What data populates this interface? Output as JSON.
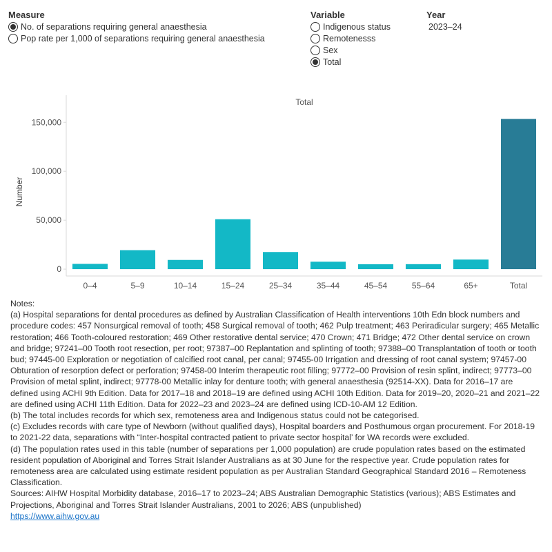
{
  "filters": {
    "measure": {
      "title": "Measure",
      "options": [
        {
          "label": "No. of separations requiring general anaesthesia",
          "selected": true
        },
        {
          "label": "Pop rate per 1,000 of separations requiring general anaesthesia",
          "selected": false
        }
      ]
    },
    "variable": {
      "title": "Variable",
      "options": [
        {
          "label": "Indigenous status",
          "selected": false
        },
        {
          "label": "Remotenesss",
          "selected": false
        },
        {
          "label": "Sex",
          "selected": false
        },
        {
          "label": "Total",
          "selected": true
        }
      ]
    },
    "year": {
      "title": "Year",
      "value": "2023–24"
    }
  },
  "chart_data": {
    "type": "bar",
    "panel_title": "Total",
    "ylabel": "Number",
    "xlabel": "",
    "categories": [
      "0–4",
      "5–9",
      "10–14",
      "15–24",
      "25–34",
      "35–44",
      "45–54",
      "55–64",
      "65+",
      "Total"
    ],
    "values": [
      5400,
      19400,
      9400,
      51000,
      17500,
      7600,
      5000,
      5100,
      9800,
      153500
    ],
    "ylim": [
      -7000,
      165000
    ],
    "yticks": [
      0,
      50000,
      100000,
      150000
    ],
    "ytick_labels": [
      "0",
      "50,000",
      "100,000",
      "150,000"
    ],
    "grid": false,
    "colors": {
      "bar": "#13b8c6",
      "total_bar": "#287c96",
      "axis": "#d9d9d9",
      "text": "#555555"
    }
  },
  "notes": {
    "heading": "Notes:",
    "lines": [
      "(a) Hospital separations for dental procedures as defined by  Australian Classification of Health interventions 10th Edn block numbers and procedure codes: 457 Nonsurgical removal of tooth; 458 Surgical removal of tooth; 462 Pulp treatment; 463 Periradicular surgery; 465 Metallic restoration; 466 Tooth-coloured restoration; 469 Other restorative dental service; 470 Crown; 471 Bridge; 472 Other dental service on crown and bridge; 97241–00 Tooth root resection, per root; 97387–00 Replantation and splinting of tooth; 97388–00 Transplantation of tooth or tooth bud; 97445-00 Exploration or negotiation of calcified root canal, per canal; 97455-00 Irrigation and dressing of root canal system; 97457-00 Obturation of resorption defect or perforation; 97458-00 Interim therapeutic root filling; 97772–00 Provision of resin splint, indirect; 97773–00 Provision of metal splint, indirect; 97778-00 Metallic inlay for denture tooth; with general anaesthesia (92514-XX). Data for 2016–17 are defined using ACHI 9th Edition. Data for 2017–18 and 2018–19 are defined using ACHI 10th Edition. Data for 2019–20, 2020–21 and 2021–22 are defined using ACHI 11th Edition. Data for 2022–23 and 2023–24 are defined using ICD-10-AM 12 Edition.",
      "(b) The total includes records for which sex, remoteness area and Indigenous status could not be categorised.",
      "(c) Excludes records with care type of Newborn (without qualified days), Hospital boarders and Posthumous organ procurement. For 2018-19 to 2021-22 data, separations with “Inter-hospital contracted patient to private sector hospital’ for WA records were excluded.",
      "(d) The population rates used in this table (number of separations per 1,000 population) are crude population rates based on the estimated resident population of Aboriginal and Torres Strait Islander Australians as at 30 June for the respective year. Crude population rates for remoteness area are calculated using estimate resident population as per Australian Standard Geographical Standard 2016 –  Remoteness Classification.",
      "Sources: AIHW Hospital Morbidity database, 2016–17 to 2023–24; ABS Australian Demographic Statistics (various); ABS Estimates and Projections, Aboriginal and Torres Strait Islander Australians, 2001 to 2026; ABS (unpublished)"
    ],
    "link": "https://www.aihw.gov.au"
  }
}
